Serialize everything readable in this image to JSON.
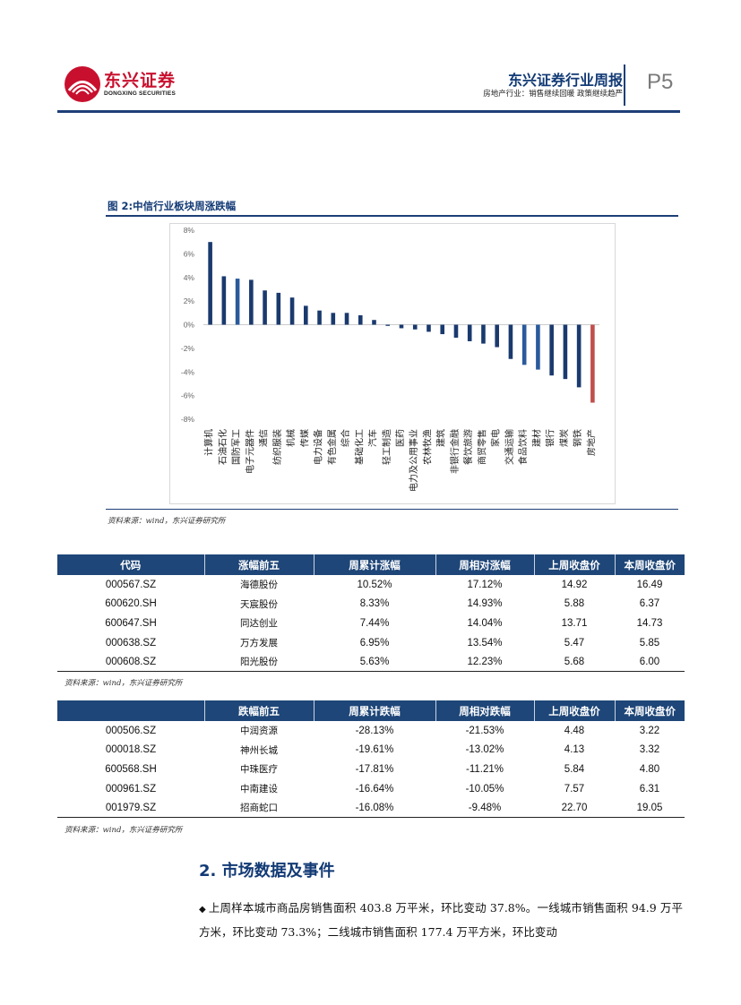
{
  "header": {
    "logo_cn": "东兴证券",
    "logo_en": "DONGXING SECURITIES",
    "report_title": "东兴证券行业周报",
    "subtitle": "房地产行业：销售继续回暖 政策继续趋严",
    "page": "P5"
  },
  "figure": {
    "title": "图 2:中信行业板块周涨跌幅",
    "source": "资料来源：wind，东兴证券研究所"
  },
  "chart_data": {
    "type": "bar",
    "ylim": [
      -8,
      8
    ],
    "yticks": [
      "8%",
      "6%",
      "4%",
      "2%",
      "0%",
      "-2%",
      "-4%",
      "-6%",
      "-8%"
    ],
    "categories": [
      "计算机",
      "石油石化",
      "国防军工",
      "电子元器件",
      "通信",
      "纺织服装",
      "机械",
      "传媒",
      "电力设备",
      "有色金属",
      "综合",
      "基础化工",
      "汽车",
      "轻工制造",
      "医药",
      "电力及公用事业",
      "农林牧渔",
      "建筑",
      "非银行金融",
      "餐饮旅游",
      "商贸零售",
      "家电",
      "交通运输",
      "食品饮料",
      "建材",
      "银行",
      "煤炭",
      "钢铁",
      "房地产"
    ],
    "values": [
      7.0,
      4.1,
      3.9,
      3.8,
      2.9,
      2.7,
      2.3,
      1.6,
      1.2,
      1.0,
      1.0,
      0.8,
      0.4,
      -0.1,
      -0.3,
      -0.4,
      -0.6,
      -0.8,
      -1.1,
      -1.4,
      -1.6,
      -1.9,
      -2.9,
      -3.4,
      -3.8,
      -4.3,
      -4.6,
      -5.3,
      -6.6
    ],
    "grid": false,
    "colors": {
      "default": "#1a3a6e",
      "highlight": "#c0504d",
      "alt": "#2a5a9c"
    }
  },
  "table1": {
    "headers": [
      "代码",
      "涨幅前五",
      "周累计涨幅",
      "周相对涨幅",
      "上周收盘价",
      "本周收盘价"
    ],
    "rows": [
      [
        "000567.SZ",
        "海德股份",
        "10.52%",
        "17.12%",
        "14.92",
        "16.49"
      ],
      [
        "600620.SH",
        "天宸股份",
        "8.33%",
        "14.93%",
        "5.88",
        "6.37"
      ],
      [
        "600647.SH",
        "同达创业",
        "7.44%",
        "14.04%",
        "13.71",
        "14.73"
      ],
      [
        "000638.SZ",
        "万方发展",
        "6.95%",
        "13.54%",
        "5.47",
        "5.85"
      ],
      [
        "000608.SZ",
        "阳光股份",
        "5.63%",
        "12.23%",
        "5.68",
        "6.00"
      ]
    ],
    "source": "资料来源：wind，东兴证券研究所"
  },
  "table2": {
    "headers": [
      "",
      "跌幅前五",
      "周累计跌幅",
      "周相对跌幅",
      "上周收盘价",
      "本周收盘价"
    ],
    "rows": [
      [
        "000506.SZ",
        "中润资源",
        "-28.13%",
        "-21.53%",
        "4.48",
        "3.22"
      ],
      [
        "000018.SZ",
        "神州长城",
        "-19.61%",
        "-13.02%",
        "4.13",
        "3.32"
      ],
      [
        "600568.SH",
        "中珠医疗",
        "-17.81%",
        "-11.21%",
        "5.84",
        "4.80"
      ],
      [
        "000961.SZ",
        "中南建设",
        "-16.64%",
        "-10.05%",
        "7.57",
        "6.31"
      ],
      [
        "001979.SZ",
        "招商蛇口",
        "-16.08%",
        "-9.48%",
        "22.70",
        "19.05"
      ]
    ],
    "source": "资料来源：wind，东兴证券研究所"
  },
  "section": {
    "title": "2. 市场数据及事件",
    "bullet": "上周样本城市商品房销售面积 403.8 万平米，环比变动 37.8%。一线城市销售面积 94.9 万平方米，环比变动 73.3%；二线城市销售面积 177.4 万平方米，环比变动"
  }
}
